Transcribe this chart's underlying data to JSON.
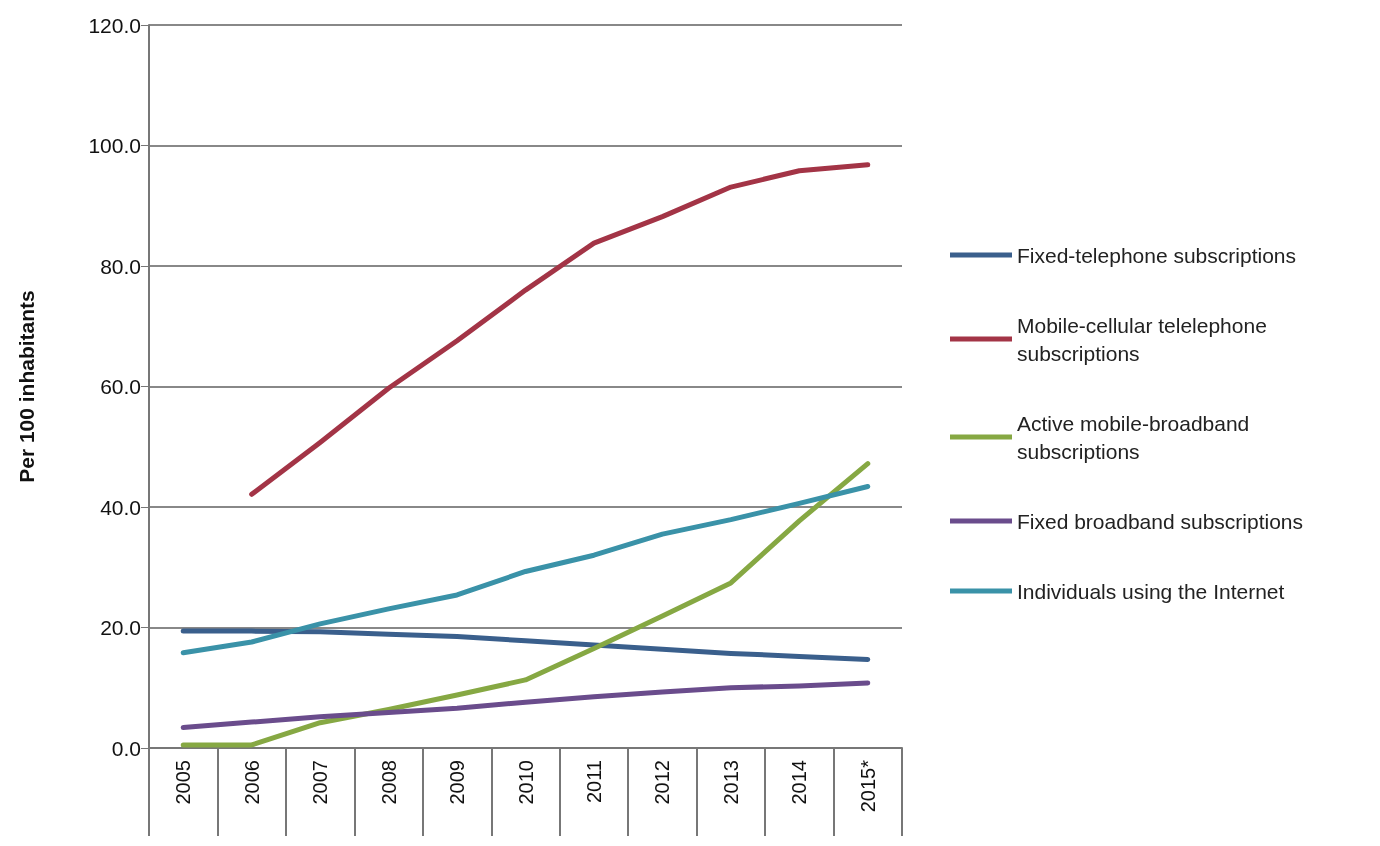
{
  "chart_data": {
    "type": "line",
    "ylabel": "Per 100 inhabitants",
    "categories": [
      "2005",
      "2006",
      "2007",
      "2008",
      "2009",
      "2010",
      "2011",
      "2012",
      "2013",
      "2014",
      "2015*"
    ],
    "series": [
      {
        "name": "Fixed-telephone subscriptions",
        "color": "#3a5f8c",
        "values": [
          19.4,
          19.4,
          19.3,
          18.9,
          18.5,
          17.8,
          17.1,
          16.4,
          15.7,
          15.2,
          14.7
        ]
      },
      {
        "name": "Mobile-cellular telelephone subscriptions",
        "color": "#a33446",
        "values": [
          null,
          42.1,
          50.7,
          59.7,
          67.6,
          76.0,
          83.8,
          88.2,
          93.1,
          95.8,
          96.8
        ]
      },
      {
        "name": "Active mobile-broadband subscriptions",
        "color": "#86a843",
        "values": [
          0.5,
          0.5,
          4.2,
          6.4,
          8.8,
          11.3,
          16.5,
          21.9,
          27.4,
          37.7,
          47.2
        ]
      },
      {
        "name": "Fixed broadband subscriptions",
        "color": "#6a4c8c",
        "values": [
          3.4,
          4.3,
          5.2,
          5.9,
          6.6,
          7.6,
          8.5,
          9.3,
          10.0,
          10.3,
          10.8
        ]
      },
      {
        "name": "Individuals using the Internet",
        "color": "#3a92a8",
        "values": [
          15.8,
          17.6,
          20.6,
          23.1,
          25.4,
          29.3,
          32.0,
          35.5,
          37.9,
          40.6,
          43.4
        ]
      }
    ],
    "ylim": [
      0,
      120
    ],
    "yticks": [
      {
        "value": 0,
        "label": "0.0"
      },
      {
        "value": 20,
        "label": "20.0"
      },
      {
        "value": 40,
        "label": "40.0"
      },
      {
        "value": 60,
        "label": "60.0"
      },
      {
        "value": 80,
        "label": "80.0"
      },
      {
        "value": 100,
        "label": "100.0"
      },
      {
        "value": 120,
        "label": "120.0"
      }
    ],
    "grid": "y",
    "legend": "right",
    "marker": "none",
    "line_style": "solid"
  }
}
